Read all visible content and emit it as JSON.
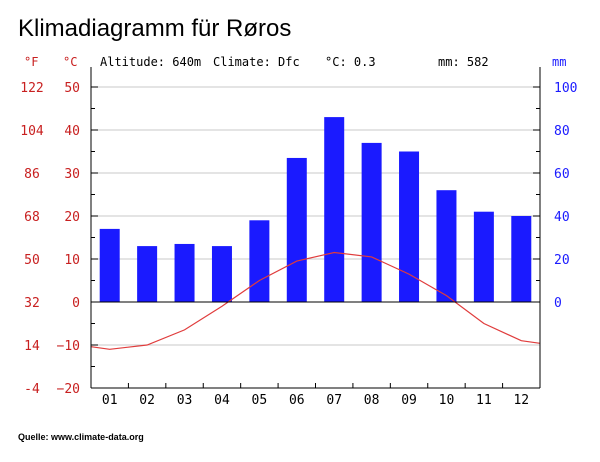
{
  "chart_data": {
    "type": "bar",
    "title": "Klimadiagramm für Røros",
    "source": "Quelle: www.climate-data.org",
    "info": {
      "altitude": "Altitude: 640m",
      "climate": "Climate: Dfc",
      "temp": "°C: 0.3",
      "precip": "mm: 582"
    },
    "units": {
      "fahrenheit": "°F",
      "celsius": "°C",
      "mm": "mm"
    },
    "categories": [
      "01",
      "02",
      "03",
      "04",
      "05",
      "06",
      "07",
      "08",
      "09",
      "10",
      "11",
      "12"
    ],
    "series": [
      {
        "kind": "bar",
        "axis": "mm",
        "values": [
          34,
          26,
          27,
          26,
          38,
          67,
          86,
          74,
          70,
          52,
          42,
          40
        ]
      },
      {
        "kind": "line",
        "axis": "celsius",
        "values": [
          -11,
          -10,
          -6.5,
          -1,
          5,
          9.5,
          11.5,
          10.5,
          6.5,
          1.5,
          -5,
          -9
        ]
      }
    ],
    "celsius_ticks": [
      50,
      40,
      30,
      20,
      10,
      0,
      -10,
      -20
    ],
    "fahrenheit_ticks": [
      122,
      104,
      86,
      68,
      50,
      32,
      14,
      -4
    ],
    "mm_ticks": [
      100,
      80,
      60,
      40,
      20,
      0
    ],
    "ylim_celsius": [
      -20,
      50
    ],
    "ylim_mm": [
      0,
      100
    ],
    "grid": true,
    "colors": {
      "bars": "#1a1aff",
      "temp_line": "#e03c3c",
      "left_labels": "#c82020",
      "right_labels": "#1a1aff",
      "grid": "#c8c8c8",
      "axis": "#000000"
    }
  }
}
